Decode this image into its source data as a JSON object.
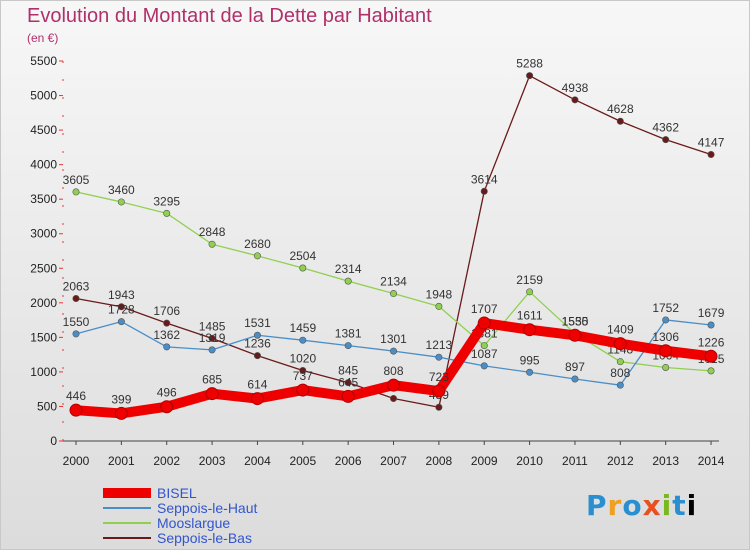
{
  "header": {
    "title": "Evolution du Montant de la Dette par Habitant",
    "subtitle": "(en €)"
  },
  "logo": {
    "text": "Proxiti"
  },
  "chart_data": {
    "type": "line",
    "title": "Evolution du Montant de la Dette par Habitant",
    "subtitle": "(en €)",
    "categories": [
      "2000",
      "2001",
      "2002",
      "2003",
      "2004",
      "2005",
      "2006",
      "2007",
      "2008",
      "2009",
      "2010",
      "2011",
      "2012",
      "2013",
      "2014"
    ],
    "ylim": [
      0,
      5500
    ],
    "yticks": [
      "0",
      "500",
      "1000",
      "1500",
      "2000",
      "2500",
      "3000",
      "3500",
      "4000",
      "4500",
      "5000",
      "5500"
    ],
    "grid": false,
    "legend": "bottom-left",
    "series": [
      {
        "name": "BISEL",
        "color": "#ee0000",
        "values": [
          446,
          399,
          496,
          685,
          614,
          737,
          645,
          808,
          723,
          1707,
          1611,
          1530,
          1409,
          1306,
          1226
        ]
      },
      {
        "name": "Seppois-le-Haut",
        "color": "#4a8ec8",
        "values": [
          1550,
          1728,
          1362,
          1319,
          1531,
          1459,
          1381,
          1301,
          1213,
          1087,
          995,
          897,
          808,
          1752,
          1679
        ]
      },
      {
        "name": "Mooslargue",
        "color": "#90d050",
        "values": [
          3605,
          3460,
          3295,
          2848,
          2680,
          2504,
          2314,
          2134,
          1948,
          1381,
          2159,
          1555,
          1148,
          1064,
          1015
        ]
      },
      {
        "name": "Seppois-le-Bas",
        "color": "#6b1a1a",
        "values": [
          2063,
          1943,
          1706,
          1485,
          1236,
          1020,
          845,
          615,
          489,
          3614,
          5288,
          4938,
          4628,
          4362,
          4147
        ]
      }
    ]
  }
}
